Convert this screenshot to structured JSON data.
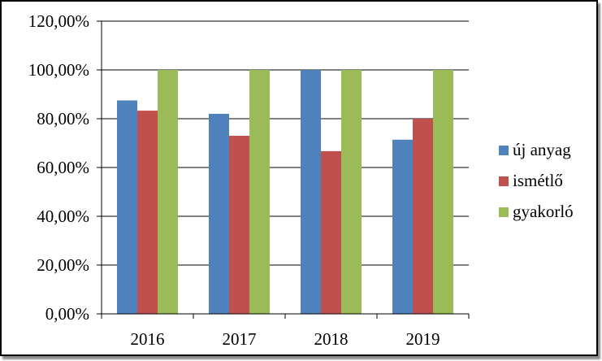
{
  "chart_data": {
    "type": "bar",
    "categories": [
      "2016",
      "2017",
      "2018",
      "2019"
    ],
    "series": [
      {
        "name": "új anyag",
        "values": [
          0.875,
          0.82,
          1.0,
          0.714
        ],
        "color": "#4F81BD"
      },
      {
        "name": "ismétlő",
        "values": [
          0.833,
          0.73,
          0.667,
          0.8
        ],
        "color": "#C0504D"
      },
      {
        "name": "gyakorló",
        "values": [
          1.0,
          1.0,
          1.0,
          1.0
        ],
        "color": "#9BBB59"
      }
    ],
    "y_ticks": [
      "0,00%",
      "20,00%",
      "40,00%",
      "60,00%",
      "80,00%",
      "100,00%",
      "120,00%"
    ],
    "ylim": [
      0,
      1.2
    ],
    "ytick_step": 0.2,
    "grid": true,
    "legend_position": "right",
    "title": "",
    "xlabel": "",
    "ylabel": ""
  }
}
